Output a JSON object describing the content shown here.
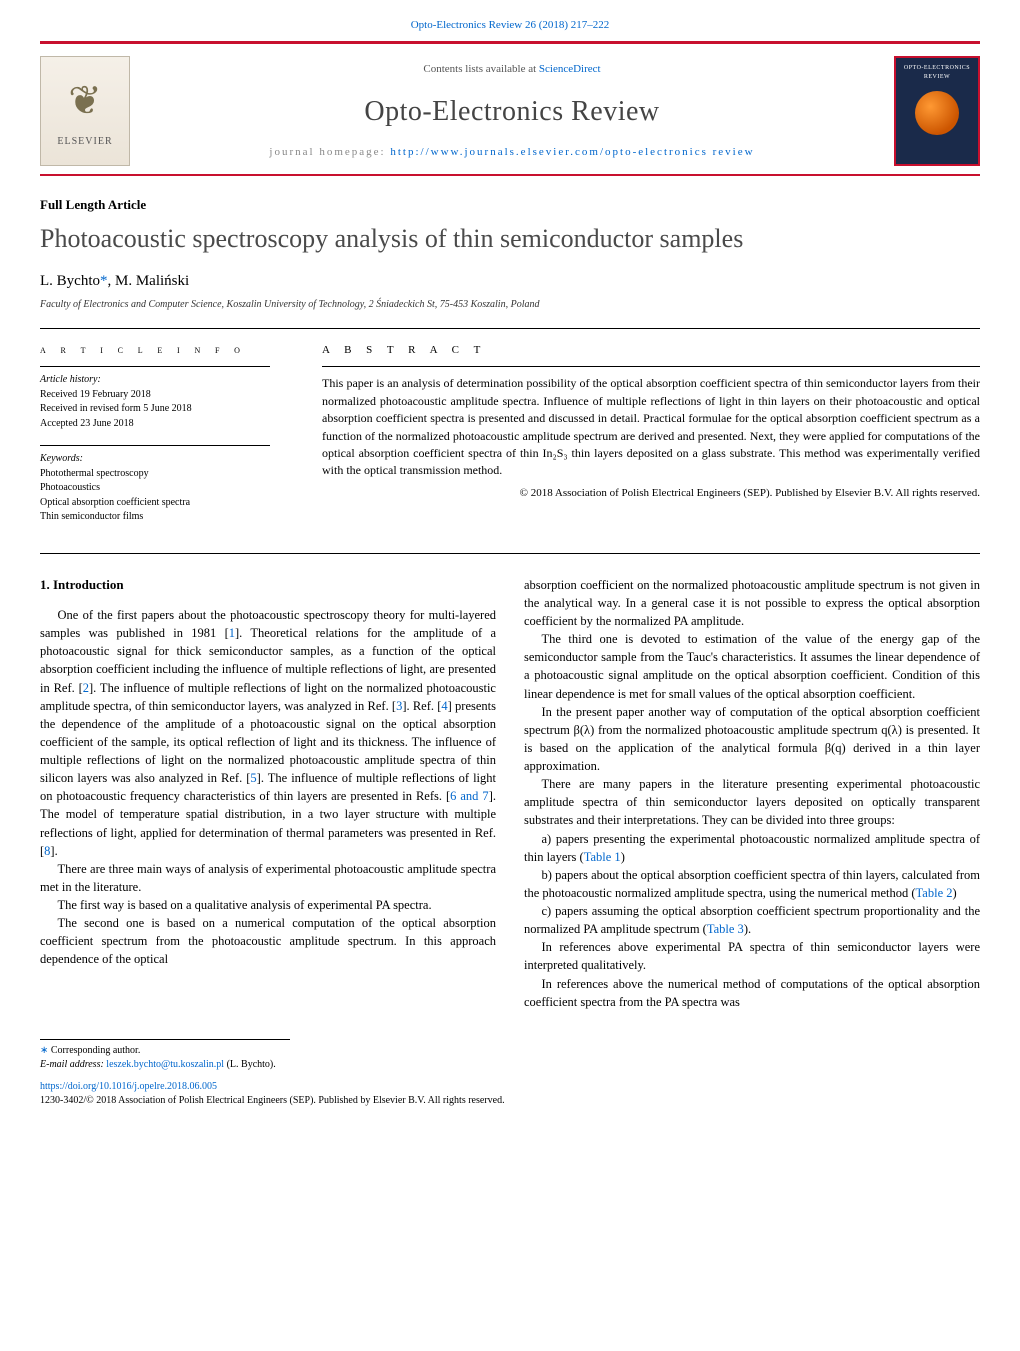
{
  "journal": {
    "top_banner": "Opto-Electronics Review 26 (2018) 217–222",
    "contents_line_prefix": "Contents lists available at ",
    "contents_line_link": "ScienceDirect",
    "name": "Opto-Electronics Review",
    "homepage_prefix": "journal homepage: ",
    "homepage_url": "http://www.journals.elsevier.com/opto-electronics review",
    "publisher_name": "ELSEVIER",
    "cover_title": "OPTO-ELECTRONICS REVIEW"
  },
  "article": {
    "type": "Full Length Article",
    "title": "Photoacoustic spectroscopy analysis of thin semiconductor samples",
    "authors_html": "L. Bychto",
    "author2": ", M. Maliński",
    "corr_star": "*",
    "affiliation": "Faculty of Electronics and Computer Science, Koszalin University of Technology, 2 Śniadeckich St, 75-453 Koszalin, Poland"
  },
  "info": {
    "heading": "A R T I C L E   I N F O",
    "history_label": "Article history:",
    "received": "Received 19 February 2018",
    "revised": "Received in revised form 5 June 2018",
    "accepted": "Accepted 23 June 2018",
    "keywords_label": "Keywords:",
    "keywords": [
      "Photothermal spectroscopy",
      "Photoacoustics",
      "Optical absorption coefficient spectra",
      "Thin semiconductor films"
    ]
  },
  "abstract": {
    "heading": "A B S T R A C T",
    "text": "This paper is an analysis of determination possibility of the optical absorption coefficient spectra of thin semiconductor layers from their normalized photoacoustic amplitude spectra. Influence of multiple reflections of light in thin layers on their photoacoustic and optical absorption coefficient spectra is presented and discussed in detail. Practical formulae for the optical absorption coefficient spectrum as a function of the normalized photoacoustic amplitude spectrum are derived and presented. Next, they were applied for computations of the optical absorption coefficient spectra of thin In₂S₃ thin layers deposited on a glass substrate. This method was experimentally verified with the optical transmission method.",
    "copyright": "© 2018 Association of Polish Electrical Engineers (SEP). Published by Elsevier B.V. All rights reserved."
  },
  "body": {
    "section1_heading": "1.  Introduction",
    "col1": {
      "p1": "One of the first papers about the photoacoustic spectroscopy theory for multi-layered samples was published in 1981 [1]. Theoretical relations for the amplitude of a photoacoustic signal for thick semiconductor samples, as a function of the optical absorption coefficient including the influence of multiple reflections of light, are presented in Ref. [2]. The influence of multiple reflections of light on the normalized photoacoustic amplitude spectra, of thin semiconductor layers, was analyzed in Ref. [3]. Ref. [4] presents the dependence of the amplitude of a photoacoustic signal on the optical absorption coefficient of the sample, its optical reflection of light and its thickness. The influence of multiple reflections of light on the normalized photoacoustic amplitude spectra of thin silicon layers was also analyzed in Ref. [5]. The influence of multiple reflections of light on photoacoustic frequency characteristics of thin layers are presented in Refs. [6 and 7]. The model of temperature spatial distribution, in a two layer structure with multiple reflections of light, applied for determination of thermal parameters was presented in Ref. [8].",
      "p2": "There are three main ways of analysis of experimental photoacoustic amplitude spectra met in the literature.",
      "p3": "The first way is based on a qualitative analysis of experimental PA spectra.",
      "p4": "The second one is based on a numerical computation of the optical absorption coefficient spectrum from the photoacoustic amplitude spectrum. In this approach dependence of the optical"
    },
    "col2": {
      "p1": "absorption coefficient on the normalized photoacoustic amplitude spectrum is not given in the analytical way. In a general case it is not possible to express the optical absorption coefficient by the normalized PA amplitude.",
      "p2": "The third one is devoted to estimation of the value of the energy gap of the semiconductor sample from the Tauc's characteristics. It assumes the linear dependence of a photoacoustic signal amplitude on the optical absorption coefficient. Condition of this linear dependence is met for small values of the optical absorption coefficient.",
      "p3": "In the present paper another way of computation of the optical absorption coefficient spectrum β(λ) from the normalized photoacoustic amplitude spectrum q(λ) is presented. It is based on the application of the analytical formula β(q) derived in a thin layer approximation.",
      "p4": "There are many papers in the literature presenting experimental photoacoustic amplitude spectra of thin semiconductor layers deposited on optically transparent substrates and their interpretations. They can be divided into three groups:",
      "pa": "a) papers presenting the experimental photoacoustic normalized amplitude spectra of thin layers (Table 1)",
      "pb": "b) papers about the optical absorption coefficient spectra of thin layers, calculated from the photoacoustic normalized amplitude spectra, using the numerical method (Table 2)",
      "pc": "c) papers assuming the optical absorption coefficient spectrum proportionality and the normalized PA amplitude spectrum (Table 3).",
      "p5": "In references above experimental PA spectra of thin semiconductor layers were interpreted qualitatively.",
      "p6": "In references above the numerical method of computations of the optical absorption coefficient spectra from the PA spectra was"
    }
  },
  "footnotes": {
    "corr": "Corresponding author.",
    "email_label": "E-mail address: ",
    "email": "leszek.bychto@tu.koszalin.pl",
    "email_suffix": " (L. Bychto)."
  },
  "footer": {
    "doi": "https://doi.org/10.1016/j.opelre.2018.06.005",
    "copyright": "1230-3402/© 2018 Association of Polish Electrical Engineers (SEP). Published by Elsevier B.V. All rights reserved."
  },
  "colors": {
    "accent_red": "#c8102e",
    "link_blue": "#0066cc"
  }
}
